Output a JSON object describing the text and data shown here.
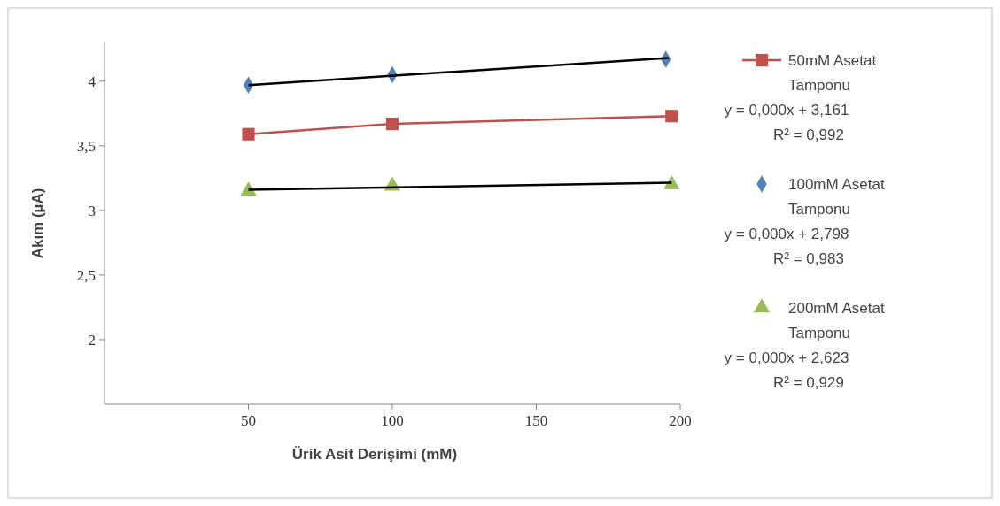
{
  "chart_data": {
    "type": "scatter",
    "xlabel": "Ürik Asit Derişimi (mM)",
    "ylabel": "Akım (µA)",
    "xlim": [
      0,
      200
    ],
    "xticks": [
      50,
      100,
      150,
      200
    ],
    "ylim": [
      1.5,
      4.3
    ],
    "yticks": [
      {
        "value": 2,
        "label": "2"
      },
      {
        "value": 2.5,
        "label": "2,5"
      },
      {
        "value": 3,
        "label": "3"
      },
      {
        "value": 3.5,
        "label": "3,5"
      },
      {
        "value": 4,
        "label": "4"
      }
    ],
    "grid": false,
    "legend": "right",
    "series": [
      {
        "name": "50mM Asetat Tamponu",
        "type": "line",
        "marker": "square",
        "color": "#c0504d",
        "x": [
          50,
          100,
          197
        ],
        "values": [
          3.59,
          3.67,
          3.73
        ]
      },
      {
        "name": "100mM Asetat Tamponu",
        "marker": "diamond",
        "color": "#4f81bd",
        "x": [
          50,
          100,
          195
        ],
        "values": [
          3.97,
          4.05,
          4.17
        ]
      },
      {
        "name": "200mM Asetat Tamponu",
        "marker": "triangle",
        "color": "#9bbb59",
        "x": [
          50,
          100,
          197
        ],
        "values": [
          3.15,
          3.19,
          3.2
        ]
      },
      {
        "type": "line",
        "marker": "none",
        "color": "#000000",
        "x": [
          50,
          196
        ],
        "values": [
          3.97,
          4.18
        ]
      },
      {
        "type": "line",
        "marker": "none",
        "color": "#000000",
        "x": [
          50,
          197
        ],
        "values": [
          3.16,
          3.215
        ]
      }
    ],
    "annotations": [
      "y = 0,000x + 3,161",
      "R² = 0,992",
      "y = 0,000x + 2,798",
      "R² = 0,983",
      "y = 0,000x + 2,623",
      "R² = 0,929"
    ]
  }
}
